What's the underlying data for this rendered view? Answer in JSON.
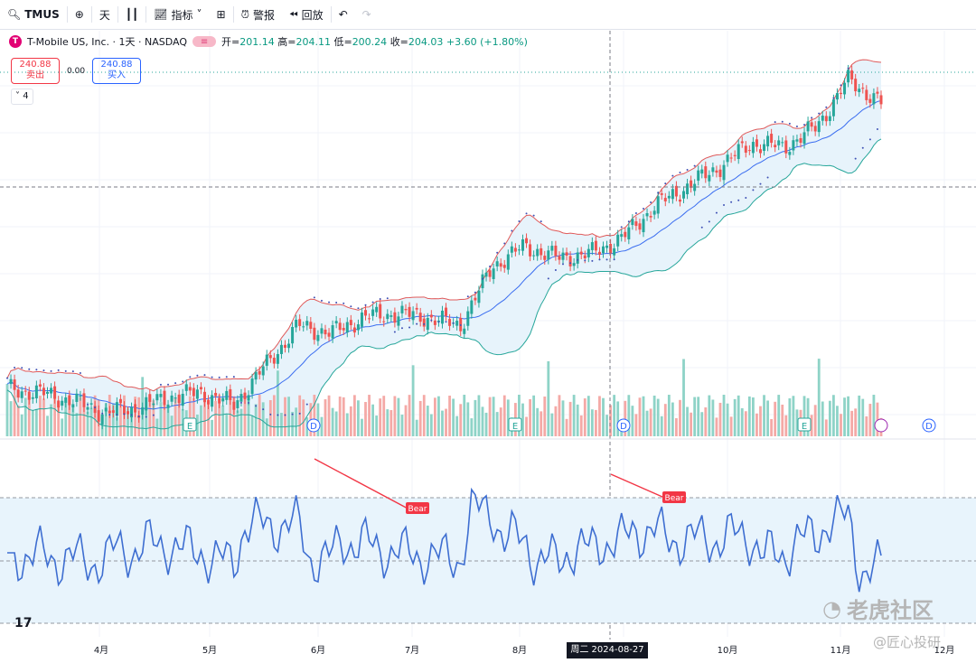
{
  "toolbar": {
    "symbol": "TMUS",
    "interval": "天",
    "indicators": "指标",
    "alerts": "警报",
    "replay": "回放"
  },
  "legend": {
    "name": "T-Mobile US, Inc. · 1天 · NASDAQ",
    "open_label": "开=",
    "open": "201.14",
    "high_label": "高=",
    "high": "204.11",
    "low_label": "低=",
    "low": "200.24",
    "close_label": "收=",
    "close": "204.03",
    "change": "+3.60 (+1.80%)"
  },
  "trade": {
    "sell_price": "240.88",
    "sell_label": "卖出",
    "spread": "0.00",
    "buy_price": "240.88",
    "buy_label": "买入"
  },
  "indicators_toggle": "4",
  "events": [
    "E",
    "D",
    "E",
    "D",
    "E",
    "D"
  ],
  "crosshair": {
    "date_label": "周二 2024-08-27"
  },
  "watermark": {
    "main": "老虎社区",
    "sub": "@匠心投研"
  },
  "brand": {
    "tv": "17"
  },
  "chart_data": {
    "type": "candlestick",
    "title": "T-Mobile US, Inc. · 1天 · NASDAQ",
    "x_ticks": [
      "4月",
      "5月",
      "6月",
      "7月",
      "8月",
      "10月",
      "11月",
      "12月"
    ],
    "price_range": [
      155,
      245
    ],
    "close_path_approx": [
      164,
      163,
      161,
      158,
      159,
      162,
      163,
      160,
      170,
      180,
      178,
      182,
      183,
      182,
      180,
      195,
      200,
      197,
      198,
      202,
      210,
      215,
      220,
      226,
      225,
      230,
      242,
      236
    ],
    "rsi": {
      "labels": [
        "Bear",
        "Bear"
      ],
      "band": [
        30,
        70
      ]
    }
  },
  "colors": {
    "up": "#26a69a",
    "down": "#ef5350",
    "bb_upper": "#e05a5a",
    "bb_mid": "#3a6df0",
    "bb_lower": "#26a69a",
    "bb_fill": "#e7f3fb",
    "psar": "#3f51b5",
    "rsi": "#3e6ed1",
    "rsi_band": "#e8f4fc",
    "bear": "#f23645"
  }
}
